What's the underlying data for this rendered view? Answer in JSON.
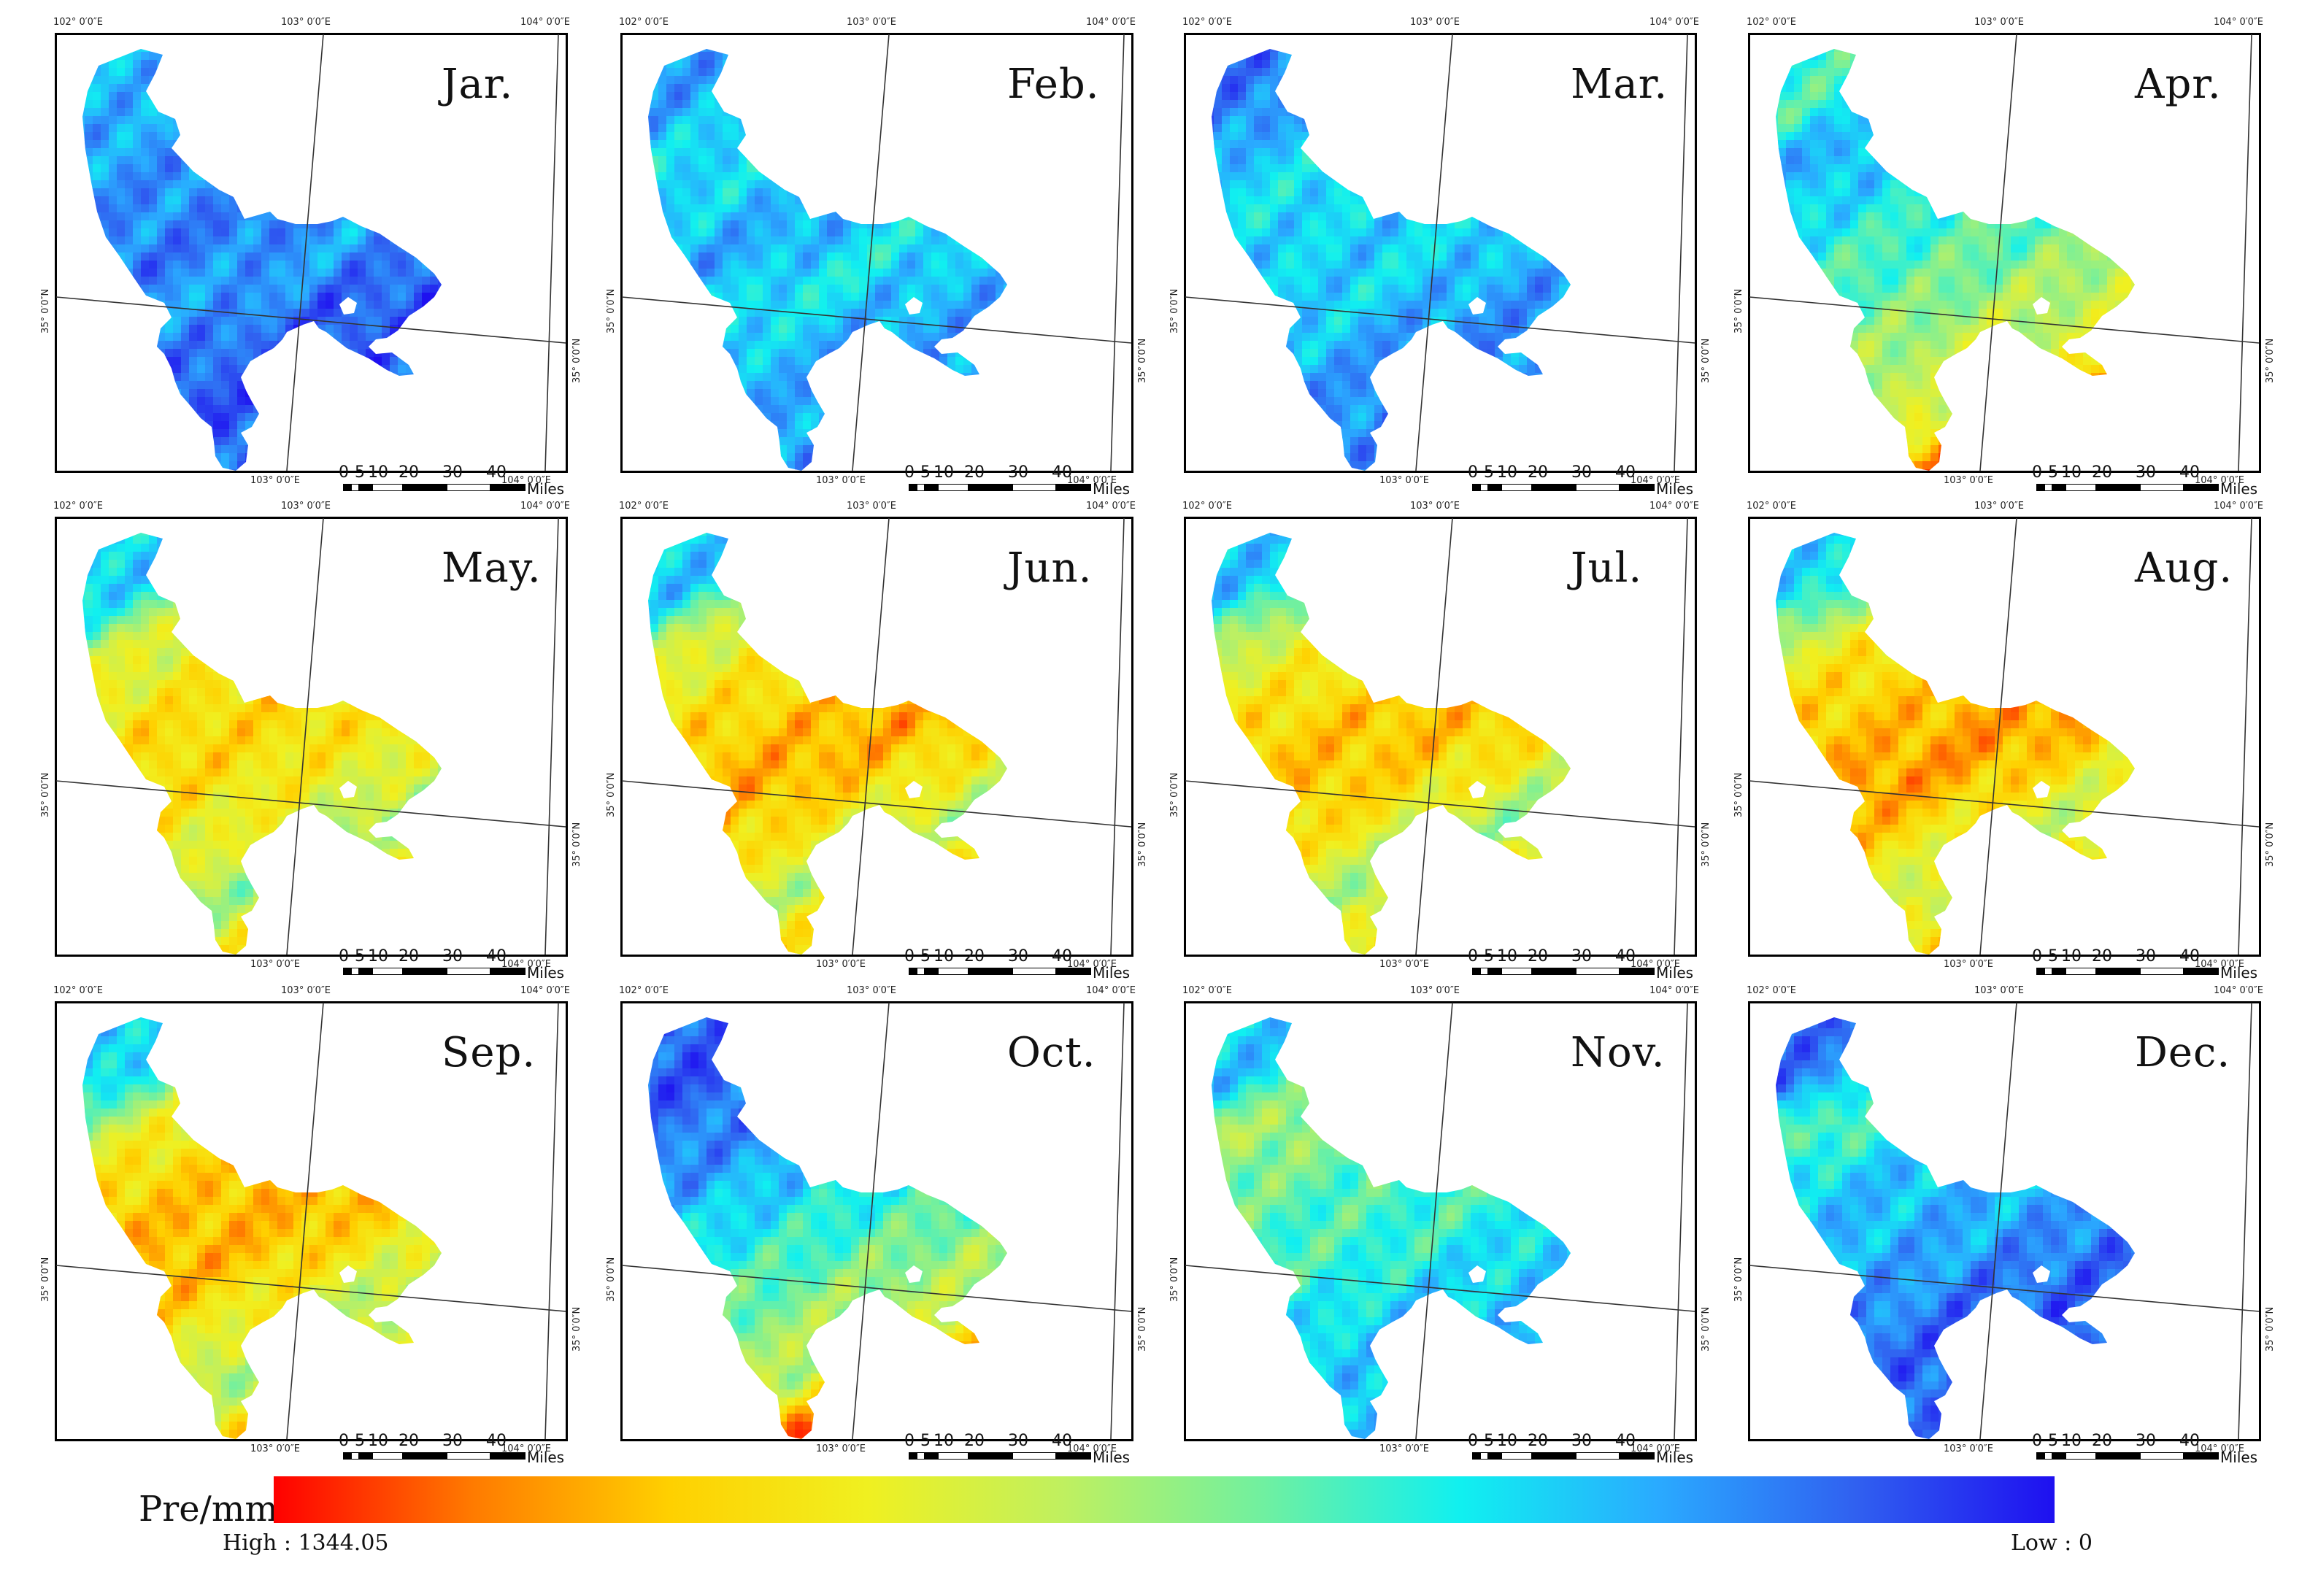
{
  "panels": [
    {
      "month": "Jar.",
      "profile": [
        0.75,
        0.8,
        0.82,
        0.85,
        0.78,
        0.88,
        0.9,
        0.88
      ]
    },
    {
      "month": "Feb.",
      "profile": [
        0.78,
        0.68,
        0.72,
        0.78,
        0.66,
        0.75,
        0.78,
        0.8
      ]
    },
    {
      "month": "Mar.",
      "profile": [
        0.85,
        0.72,
        0.68,
        0.72,
        0.7,
        0.78,
        0.82,
        0.8
      ]
    },
    {
      "month": "Apr.",
      "profile": [
        0.62,
        0.78,
        0.68,
        0.6,
        0.55,
        0.45,
        0.42,
        0.12
      ]
    },
    {
      "month": "May.",
      "profile": [
        0.72,
        0.4,
        0.32,
        0.25,
        0.28,
        0.35,
        0.5,
        0.3
      ]
    },
    {
      "month": "Jun.",
      "profile": [
        0.72,
        0.38,
        0.3,
        0.22,
        0.18,
        0.3,
        0.45,
        0.25
      ]
    },
    {
      "month": "Jul.",
      "profile": [
        0.72,
        0.4,
        0.3,
        0.22,
        0.22,
        0.32,
        0.5,
        0.28
      ]
    },
    {
      "month": "Aug.",
      "profile": [
        0.7,
        0.35,
        0.25,
        0.2,
        0.15,
        0.28,
        0.45,
        0.22
      ]
    },
    {
      "month": "Sep.",
      "profile": [
        0.72,
        0.38,
        0.25,
        0.2,
        0.2,
        0.32,
        0.5,
        0.25
      ]
    },
    {
      "month": "Oct.",
      "profile": [
        0.9,
        0.85,
        0.78,
        0.68,
        0.6,
        0.5,
        0.45,
        0.08
      ]
    },
    {
      "month": "Nov.",
      "profile": [
        0.72,
        0.45,
        0.55,
        0.6,
        0.62,
        0.7,
        0.72,
        0.78
      ]
    },
    {
      "month": "Dec.",
      "profile": [
        0.85,
        0.55,
        0.72,
        0.75,
        0.78,
        0.85,
        0.88,
        0.88
      ]
    }
  ],
  "coords": {
    "lon_1": "102° 0′0″E",
    "lon_2": "103° 0′0″E",
    "lon_3": "104° 0′0″E",
    "lat": "35° 0′0″N"
  },
  "scalebar": {
    "ticks": [
      "0",
      "5",
      "10",
      "20",
      "30",
      "40"
    ],
    "unit": "Miles"
  },
  "legend": {
    "title": "Pre/mm",
    "high_label": "High : 1344.05",
    "low_label": "Low : 0",
    "high_value": 1344.05,
    "low_value": 0,
    "colors": [
      "#ff0000",
      "#ff7a00",
      "#ffd000",
      "#f0f020",
      "#bff060",
      "#70f0a0",
      "#10f0f0",
      "#2aaaff",
      "#3060f0",
      "#1e10f0"
    ]
  }
}
